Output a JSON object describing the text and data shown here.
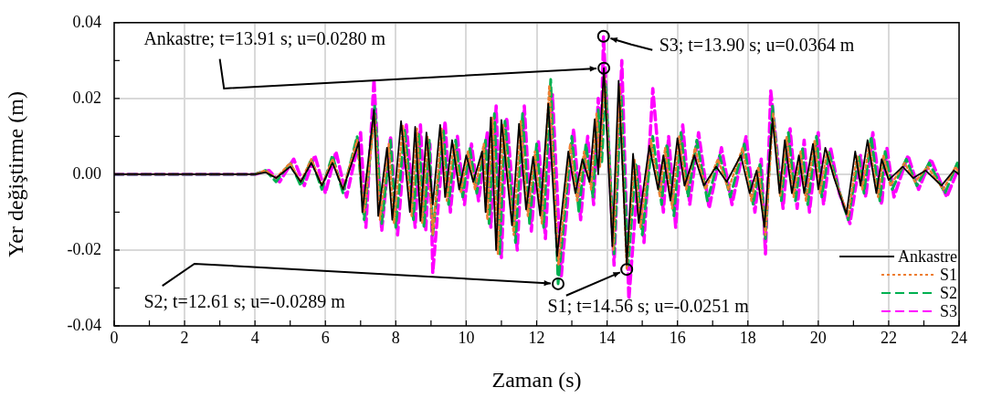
{
  "chart_data": {
    "type": "line",
    "xlabel": "Zaman (s)",
    "ylabel": "Yer değiştirme (m)",
    "xlim": [
      0,
      24
    ],
    "xticks": [
      0,
      {
        "value": 1,
        "label": null
      },
      2,
      {
        "value": 3,
        "label": null
      },
      4,
      {
        "value": 5,
        "label": null
      },
      6,
      {
        "value": 7,
        "label": null
      },
      8,
      {
        "value": 9,
        "label": null
      },
      10,
      {
        "value": 11,
        "label": null
      },
      12,
      {
        "value": 13,
        "label": null
      },
      14,
      {
        "value": 15,
        "label": null
      },
      16,
      {
        "value": 17,
        "label": null
      },
      18,
      {
        "value": 19,
        "label": null
      },
      20,
      {
        "value": 21,
        "label": null
      },
      22,
      {
        "value": 23,
        "label": null
      },
      24
    ],
    "ylim": [
      -0.04,
      0.04
    ],
    "yticks": [
      {
        "value": -0.04,
        "label": "-0.04"
      },
      {
        "value": -0.03,
        "label": null
      },
      {
        "value": -0.02,
        "label": "-0.02"
      },
      {
        "value": -0.01,
        "label": null
      },
      {
        "value": 0,
        "label": "0.00"
      },
      {
        "value": 0.01,
        "label": null
      },
      {
        "value": 0.02,
        "label": "0.02"
      },
      {
        "value": 0.03,
        "label": null
      },
      {
        "value": 0.04,
        "label": "0.04"
      }
    ],
    "grid": true,
    "legend": "bottom right",
    "series": [
      {
        "name": "Ankastre",
        "color": "#000000",
        "line_style": "solid",
        "x": [
          0,
          4,
          4.3,
          4.6,
          5,
          5.3,
          5.6,
          5.9,
          6.2,
          6.5,
          6.95,
          7.05,
          7.38,
          7.5,
          7.75,
          7.9,
          8.15,
          8.4,
          8.55,
          8.7,
          8.87,
          9.05,
          9.26,
          9.4,
          9.6,
          9.8,
          10,
          10.2,
          10.45,
          10.55,
          10.7,
          10.85,
          11,
          11.3,
          11.5,
          11.7,
          11.9,
          12.1,
          12.33,
          12.58,
          12.9,
          13.1,
          13.3,
          13.5,
          13.65,
          13.75,
          13.91,
          14.15,
          14.33,
          14.56,
          14.74,
          14.9,
          15.2,
          15.45,
          15.6,
          15.8,
          16,
          16.2,
          16.48,
          16.75,
          17.1,
          17.4,
          17.8,
          18.05,
          18.25,
          18.47,
          18.7,
          18.9,
          19.05,
          19.25,
          19.45,
          19.6,
          19.85,
          20,
          20.2,
          20.45,
          20.8,
          21.05,
          21.2,
          21.4,
          21.65,
          21.8,
          22,
          22.4,
          22.7,
          23.05,
          23.5,
          23.85,
          24
        ],
        "values": [
          0,
          0,
          0.0005,
          -0.001,
          0.002,
          -0.002,
          0.003,
          -0.003,
          0.003,
          -0.004,
          0.0085,
          -0.01,
          0.017,
          -0.011,
          0.007,
          -0.012,
          0.014,
          -0.01,
          0.0125,
          -0.0123,
          0.011,
          -0.008,
          0.013,
          -0.006,
          0.009,
          -0.004,
          0.005,
          -0.002,
          0.006,
          -0.01,
          0.015,
          -0.02,
          0.0143,
          -0.0135,
          0.0133,
          -0.0093,
          0.0046,
          -0.0109,
          0.0186,
          -0.0216,
          0.006,
          -0.005,
          0.004,
          -0.002,
          0.0145,
          0,
          0.028,
          -0.019,
          0.0247,
          -0.0238,
          0.0054,
          -0.0129,
          0.0075,
          -0.004,
          0.005,
          -0.007,
          0.0095,
          -0.003,
          0.005,
          -0.003,
          0.002,
          -0.002,
          0.005,
          -0.005,
          0.001,
          -0.0139,
          0.0147,
          -0.005,
          0.009,
          -0.005,
          0.005,
          -0.005,
          0.008,
          -0.004,
          0.007,
          -0.001,
          -0.0105,
          0.006,
          -0.003,
          0.009,
          -0.005,
          0.004,
          -0.0015,
          0.002,
          -0.001,
          0.001,
          -0.003,
          0.001,
          0
        ]
      },
      {
        "name": "S1",
        "color": "#ed7d31",
        "line_style": "dotted",
        "x": [
          0,
          4,
          4.3,
          4.6,
          5,
          5.3,
          5.6,
          5.9,
          6.2,
          6.5,
          6.9,
          7.1,
          7.4,
          7.55,
          7.8,
          7.95,
          8.2,
          8.45,
          8.6,
          8.75,
          8.9,
          9.05,
          9.3,
          9.45,
          9.65,
          9.85,
          10.05,
          10.25,
          10.5,
          10.6,
          10.75,
          10.9,
          11.05,
          11.35,
          11.55,
          11.75,
          11.95,
          12.15,
          12.36,
          12.62,
          12.95,
          13.15,
          13.35,
          13.55,
          13.7,
          13.8,
          13.93,
          14.18,
          14.36,
          14.56,
          14.78,
          14.95,
          15.25,
          15.5,
          15.65,
          15.85,
          16.05,
          16.25,
          16.5,
          16.8,
          17.15,
          17.45,
          17.85,
          18.1,
          18.3,
          18.5,
          18.72,
          18.92,
          19.1,
          19.3,
          19.5,
          19.65,
          19.9,
          20.05,
          20.25,
          20.5,
          20.85,
          21.1,
          21.25,
          21.45,
          21.7,
          21.85,
          22.05,
          22.45,
          22.75,
          23.1,
          23.55,
          23.9,
          24
        ],
        "values": [
          0,
          0,
          0.001,
          -0.001,
          0.003,
          -0.002,
          0.004,
          -0.003,
          0.004,
          -0.004,
          0.009,
          -0.01,
          0.0155,
          -0.012,
          0.008,
          -0.013,
          0.013,
          -0.011,
          0.012,
          -0.013,
          0.01,
          -0.016,
          0.012,
          -0.007,
          0.008,
          -0.005,
          0.006,
          -0.004,
          0.008,
          -0.012,
          0.015,
          -0.021,
          0.013,
          -0.016,
          0.014,
          -0.011,
          0.006,
          -0.013,
          0.0235,
          -0.024,
          0.008,
          -0.007,
          0.006,
          -0.004,
          0.016,
          0.002,
          0.026,
          -0.02,
          0.023,
          -0.0251,
          0.004,
          -0.014,
          0.009,
          -0.006,
          0.007,
          -0.009,
          0.01,
          -0.004,
          0.007,
          -0.004,
          0.004,
          -0.004,
          0.007,
          -0.007,
          0.002,
          -0.016,
          0.016,
          -0.006,
          0.01,
          -0.006,
          0.006,
          -0.007,
          0.009,
          -0.005,
          0.006,
          -0.002,
          -0.011,
          0.005,
          -0.004,
          0.008,
          -0.006,
          0.005,
          -0.003,
          0.003,
          -0.002,
          0.002,
          -0.004,
          0.002,
          0
        ]
      },
      {
        "name": "S2",
        "color": "#00b050",
        "line_style": "dashed",
        "x": [
          0,
          4,
          4.3,
          4.6,
          5,
          5.3,
          5.6,
          5.9,
          6.2,
          6.5,
          6.9,
          7.1,
          7.4,
          7.6,
          7.85,
          8,
          8.25,
          8.5,
          8.65,
          8.8,
          8.95,
          9.05,
          9.35,
          9.5,
          9.7,
          9.9,
          10.1,
          10.3,
          10.55,
          10.65,
          10.8,
          10.95,
          11.1,
          11.4,
          11.6,
          11.8,
          12,
          12.2,
          12.4,
          12.61,
          13,
          13.2,
          13.4,
          13.6,
          13.75,
          13.85,
          13.96,
          14.2,
          14.4,
          14.6,
          14.82,
          15,
          15.3,
          15.55,
          15.7,
          15.9,
          16.1,
          16.3,
          16.55,
          16.85,
          17.2,
          17.5,
          17.9,
          18.15,
          18.35,
          18.5,
          18.7,
          18.95,
          19.15,
          19.35,
          19.55,
          19.7,
          19.95,
          20.1,
          20.3,
          20.55,
          20.85,
          21.15,
          21.3,
          21.5,
          21.75,
          21.9,
          22.1,
          22.5,
          22.8,
          23.15,
          23.6,
          23.95,
          24
        ],
        "values": [
          0,
          0,
          0.001,
          -0.002,
          0.003,
          -0.003,
          0.004,
          -0.004,
          0.005,
          -0.005,
          0.01,
          -0.012,
          0.018,
          -0.013,
          0.009,
          -0.014,
          0.012,
          -0.012,
          0.011,
          -0.014,
          0.009,
          -0.016,
          0.012,
          -0.008,
          0.009,
          -0.006,
          0.007,
          -0.005,
          0.009,
          -0.013,
          0.016,
          -0.021,
          0.014,
          -0.018,
          0.016,
          -0.013,
          0.008,
          -0.014,
          0.025,
          -0.0289,
          0.01,
          -0.01,
          0.008,
          -0.006,
          0.017,
          0.003,
          0.024,
          -0.021,
          0.021,
          -0.024,
          0.003,
          -0.016,
          0.01,
          -0.008,
          0.008,
          -0.011,
          0.011,
          -0.006,
          0.009,
          -0.007,
          0.005,
          -0.006,
          0.008,
          -0.008,
          0.003,
          -0.017,
          0.018,
          -0.007,
          0.011,
          -0.007,
          0.007,
          -0.008,
          0.01,
          -0.006,
          0.006,
          -0.003,
          -0.012,
          0.005,
          -0.005,
          0.01,
          -0.007,
          0.006,
          -0.004,
          0.004,
          -0.003,
          0.003,
          -0.005,
          0.003,
          0
        ]
      },
      {
        "name": "S3",
        "color": "#ff00ff",
        "line_style": "dashed",
        "x": [
          0,
          4,
          4.4,
          4.7,
          5.1,
          5.4,
          5.7,
          6,
          6.3,
          6.6,
          7,
          7.15,
          7.38,
          7.6,
          7.85,
          8.05,
          8.3,
          8.55,
          8.7,
          8.85,
          8.97,
          9.05,
          9.4,
          9.55,
          9.75,
          9.95,
          10.15,
          10.35,
          10.6,
          10.7,
          10.85,
          11,
          11.15,
          11.45,
          11.65,
          11.85,
          12.05,
          12.25,
          12.45,
          12.7,
          13.05,
          13.25,
          13.45,
          13.62,
          13.75,
          13.82,
          13.9,
          14.2,
          14.42,
          14.62,
          14.9,
          15.05,
          15.3,
          15.6,
          15.75,
          15.95,
          16.15,
          16.35,
          16.6,
          16.9,
          17.25,
          17.55,
          17.95,
          18.2,
          18.38,
          18.5,
          18.65,
          19,
          19.2,
          19.4,
          19.6,
          19.75,
          20,
          20.15,
          20.35,
          20.6,
          20.9,
          21.2,
          21.35,
          21.55,
          21.8,
          21.95,
          22.15,
          22.55,
          22.85,
          23.2,
          23.65,
          24
        ],
        "values": [
          0,
          0,
          0.001,
          -0.002,
          0.004,
          -0.003,
          0.005,
          -0.005,
          0.006,
          -0.006,
          0.011,
          -0.014,
          0.025,
          -0.015,
          0.01,
          -0.016,
          0.013,
          -0.014,
          0.013,
          -0.015,
          0.008,
          -0.026,
          0.014,
          -0.01,
          0.01,
          -0.008,
          0.008,
          -0.007,
          0.011,
          -0.014,
          0.018,
          -0.022,
          0.015,
          -0.02,
          0.018,
          -0.015,
          0.009,
          -0.017,
          0.021,
          -0.027,
          0.012,
          -0.012,
          0.01,
          -0.008,
          0.02,
          0.004,
          0.0364,
          -0.024,
          0.03,
          -0.033,
          0.002,
          -0.018,
          0.0226,
          -0.01,
          0.01,
          -0.014,
          0.013,
          -0.008,
          0.011,
          -0.009,
          0.007,
          -0.008,
          0.01,
          -0.01,
          0.004,
          -0.021,
          0.022,
          -0.009,
          0.012,
          -0.009,
          0.009,
          -0.01,
          0.011,
          -0.008,
          0.007,
          -0.005,
          -0.013,
          0.005,
          -0.006,
          0.011,
          -0.008,
          0.007,
          -0.006,
          0.005,
          -0.004,
          0.004,
          -0.006,
          0.002
        ]
      }
    ],
    "annotations": [
      {
        "text": "Ankastre; t=13.91 s; u=0.0280 m",
        "x": 13.91,
        "y": 0.028
      },
      {
        "text": "S3; t=13.90 s; u=0.0364 m",
        "x": 13.9,
        "y": 0.0364
      },
      {
        "text": "S2; t=12.61 s; u=-0.0289 m",
        "x": 12.61,
        "y": -0.0289
      },
      {
        "text": "S1; t=14.56 s; u=-0.0251 m",
        "x": 14.56,
        "y": -0.0251
      }
    ]
  }
}
